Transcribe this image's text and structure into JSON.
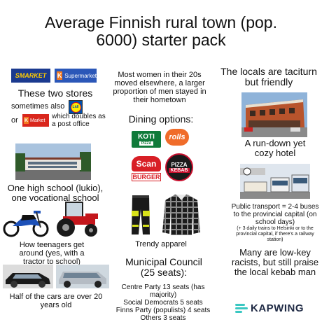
{
  "title": "Average Finnish rural town (pop. 6000) starter pack",
  "stores": {
    "smarket_logo": "SMARKET",
    "ksupermarket_logo": "Supermarket",
    "ksuper_k": "K",
    "heading": "These two stores",
    "sometimes_also": "sometimes also",
    "lidl_logo": "Lidl",
    "or": "or",
    "kmarket_logo": "Market",
    "kmarket_k": "K",
    "post_office": "which doubles as a post office"
  },
  "women_text": "Most women in their 20s moved elsewhere, a larger proportion of men stayed in their hometown",
  "locals_text": "The locals are taciturn but friendly",
  "dining": {
    "heading": "Dining options:",
    "kotipizza": "KOTI",
    "kotipizza_sub": "PIZZA",
    "rolls": "rolls",
    "scan_top": "Scan",
    "scan_bottom": "BURGER",
    "pizza_kebab_top": "PIZZA",
    "pizza_kebab_bottom": "KEBAB"
  },
  "hotel_text": "A run-down yet cozy hotel",
  "school_text": "One high school (lukio), one vocational school",
  "transport": {
    "main": "Public transport = 2-4 buses to the provincial capital (on school days)",
    "note": "(+ 3 daily trains to Helsinki or to the provincial capital, if there's a railway station)"
  },
  "teenagers_text": "How teenagers get around (yes, with a tractor to school)",
  "apparel_text": "Trendy apparel",
  "racists_text": "Many are low-key racists, but still praise the local kebab man",
  "council": {
    "heading": "Municipal Council (25 seats):",
    "lines": [
      "Centre Party 13 seats (has majority)",
      "Social Democrats 5 seats",
      "Finns Party (populists) 4 seats",
      "Others 3 seats"
    ]
  },
  "cars_text": "Half of the cars are over 20 years old",
  "watermark": "KAPWING",
  "colors": {
    "smarket_blue": "#1b3a8f",
    "ksuper_blue": "#2b57b8",
    "k_orange": "#f47a20",
    "kmarket_red": "#d9271d",
    "lidl_blue": "#0050aa",
    "lidl_yellow": "#ffed00",
    "koti_green": "#0f7a3a",
    "rolls_orange": "#f06c2a",
    "scan_red": "#d81f26",
    "kapwing_teal": "#3ac7c2"
  }
}
